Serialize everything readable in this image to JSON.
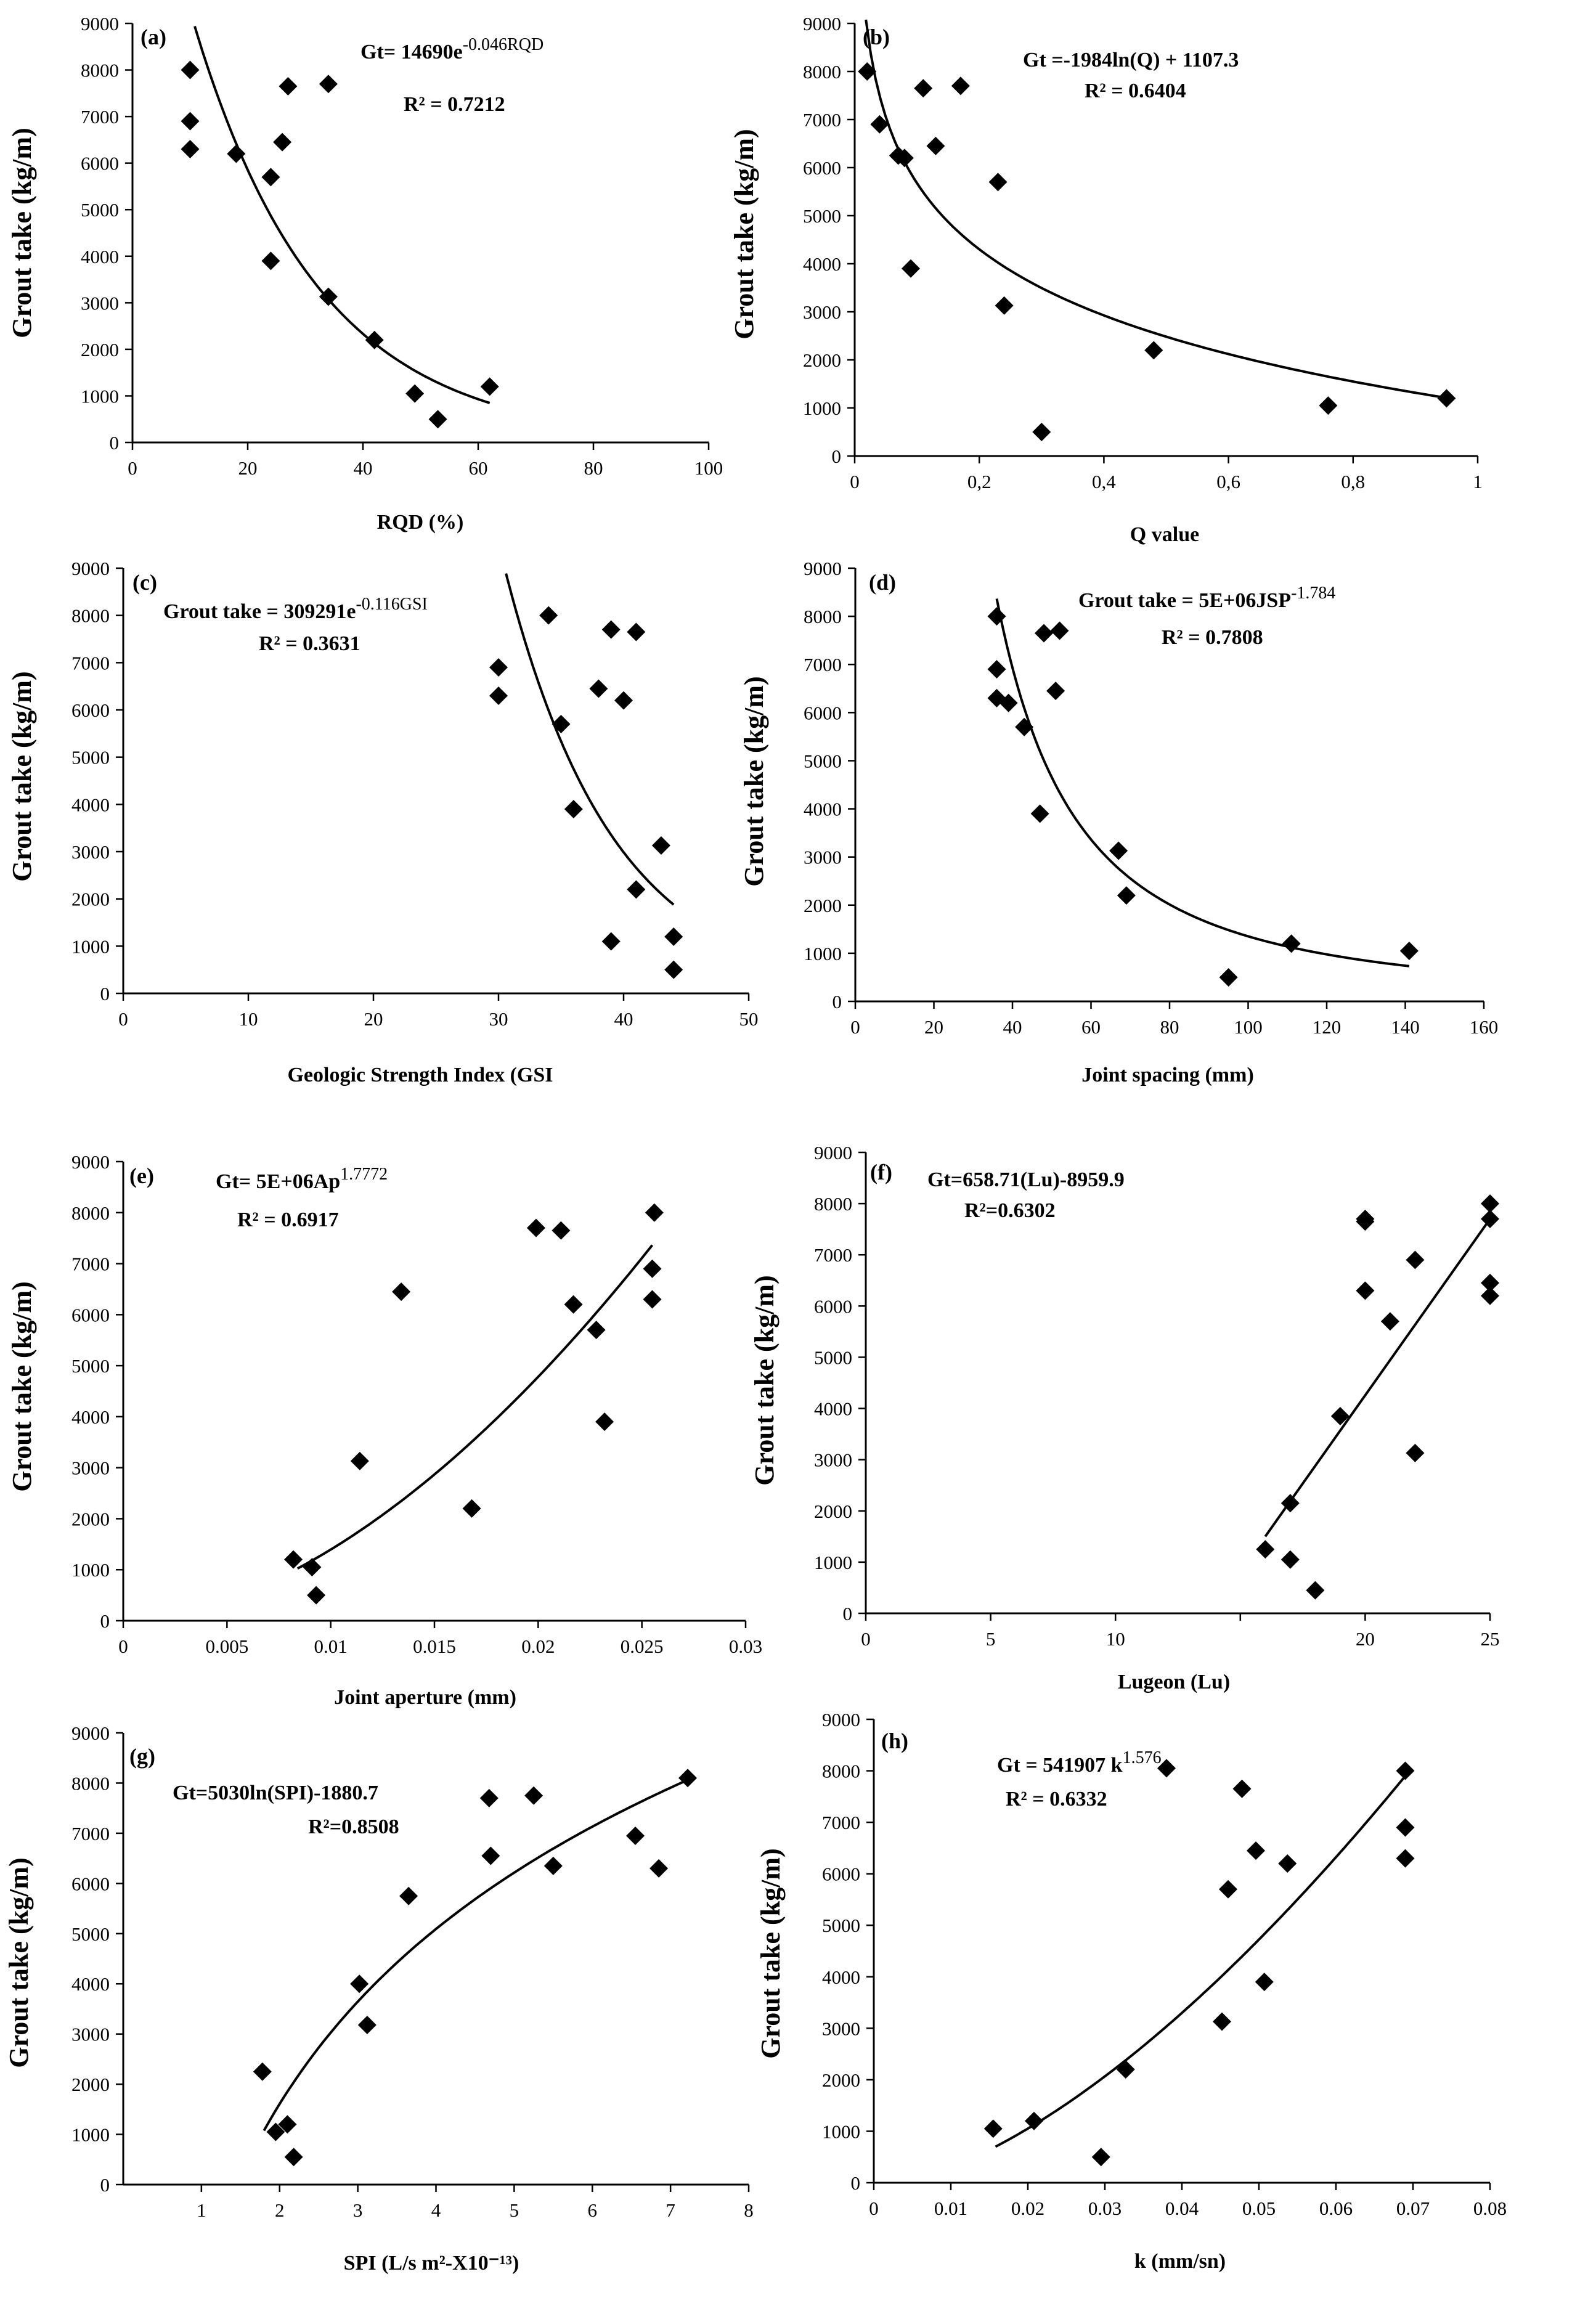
{
  "figure": "Grout take correlation plots",
  "chart_data": [
    {
      "type": "scatter",
      "panel_label": "(a)",
      "ylabel": "Grout take (kg/m)",
      "xlabel": "RQD (%)",
      "equation_parts": [
        "Gt= 14690e",
        "-0.046RQD"
      ],
      "r2": "R² = 0.7212",
      "xlim": [
        0,
        100
      ],
      "ylim": [
        0,
        9000
      ],
      "xticks": [
        0,
        20,
        40,
        60,
        80,
        100
      ],
      "xtick_labels": [
        "0",
        "20",
        "40",
        "60",
        "80",
        "100"
      ],
      "yticks": [
        0,
        1000,
        2000,
        3000,
        4000,
        5000,
        6000,
        7000,
        8000,
        9000
      ],
      "ytick_labels": [
        "0",
        "1000",
        "2000",
        "3000",
        "4000",
        "5000",
        "6000",
        "7000",
        "8000",
        "9000"
      ],
      "points": [
        [
          10,
          8000
        ],
        [
          10,
          6900
        ],
        [
          10,
          6300
        ],
        [
          18,
          6200
        ],
        [
          24,
          5700
        ],
        [
          26,
          6450
        ],
        [
          27,
          7650
        ],
        [
          34,
          7700
        ],
        [
          24,
          3900
        ],
        [
          34,
          3130
        ],
        [
          42,
          2200
        ],
        [
          49,
          1050
        ],
        [
          53,
          500
        ],
        [
          62,
          1200
        ]
      ],
      "fit": {
        "model": "exp",
        "a": 14690,
        "b": -0.046,
        "x_range": [
          10.8,
          62
        ]
      }
    },
    {
      "type": "scatter",
      "panel_label": "(b)",
      "ylabel": "Grout take (kg/m)",
      "xlabel": "Q value",
      "equation_parts": [
        "Gt =-1984ln(Q) + 1107.3"
      ],
      "r2": "R² = 0.6404",
      "xlim": [
        0,
        1
      ],
      "ylim": [
        0,
        9000
      ],
      "xticks": [
        0,
        0.2,
        0.4,
        0.6,
        0.8,
        1
      ],
      "xtick_labels": [
        "0",
        "0,2",
        "0,4",
        "0,6",
        "0,8",
        "1"
      ],
      "yticks": [
        0,
        1000,
        2000,
        3000,
        4000,
        5000,
        6000,
        7000,
        8000,
        9000
      ],
      "ytick_labels": [
        "0",
        "1000",
        "2000",
        "3000",
        "4000",
        "5000",
        "6000",
        "7000",
        "8000",
        "9000"
      ],
      "points": [
        [
          0.02,
          8000
        ],
        [
          0.04,
          6900
        ],
        [
          0.07,
          6250
        ],
        [
          0.08,
          6200
        ],
        [
          0.11,
          7650
        ],
        [
          0.13,
          6450
        ],
        [
          0.17,
          7700
        ],
        [
          0.23,
          5700
        ],
        [
          0.09,
          3900
        ],
        [
          0.24,
          3130
        ],
        [
          0.48,
          2200
        ],
        [
          0.3,
          500
        ],
        [
          0.76,
          1050
        ],
        [
          0.95,
          1200
        ]
      ],
      "fit": {
        "model": "log",
        "a": -1984,
        "b": 1107.3,
        "x_range": [
          0.018,
          0.95
        ]
      }
    },
    {
      "type": "scatter",
      "panel_label": "(c)",
      "ylabel": "Grout take (kg/m)",
      "xlabel": "Geologic Strength Index (GSI",
      "equation_parts": [
        "Grout take = 309291e",
        "-0.116GSI"
      ],
      "r2": "R² = 0.3631",
      "xlim": [
        0,
        50
      ],
      "ylim": [
        0,
        9000
      ],
      "xticks": [
        0,
        10,
        20,
        30,
        40,
        50
      ],
      "xtick_labels": [
        "0",
        "10",
        "20",
        "30",
        "40",
        "50"
      ],
      "yticks": [
        0,
        1000,
        2000,
        3000,
        4000,
        5000,
        6000,
        7000,
        8000,
        9000
      ],
      "ytick_labels": [
        "0",
        "1000",
        "2000",
        "3000",
        "4000",
        "5000",
        "6000",
        "7000",
        "8000",
        "9000"
      ],
      "points": [
        [
          30,
          6900
        ],
        [
          30,
          6300
        ],
        [
          34,
          8000
        ],
        [
          35,
          5700
        ],
        [
          36,
          3900
        ],
        [
          38,
          6450
        ],
        [
          39,
          7700
        ],
        [
          40,
          6200
        ],
        [
          41,
          7650
        ],
        [
          41,
          2200
        ],
        [
          43,
          3130
        ],
        [
          39,
          1100
        ],
        [
          44,
          1200
        ],
        [
          44,
          500
        ]
      ],
      "fit": {
        "model": "exp",
        "a": 309291,
        "b": -0.116,
        "x_range": [
          30.6,
          44
        ]
      }
    },
    {
      "type": "scatter",
      "panel_label": "(d)",
      "ylabel": "Grout take (kg/m)",
      "xlabel": "Joint spacing (mm)",
      "equation_parts": [
        "Grout take = 5E+06JSP",
        "-1.784"
      ],
      "r2": "R² = 0.7808",
      "xlim": [
        0,
        160
      ],
      "ylim": [
        0,
        9000
      ],
      "xticks": [
        0,
        20,
        40,
        60,
        80,
        100,
        120,
        140,
        160
      ],
      "xtick_labels": [
        "0",
        "20",
        "40",
        "60",
        "80",
        "100",
        "120",
        "140",
        "160"
      ],
      "yticks": [
        0,
        1000,
        2000,
        3000,
        4000,
        5000,
        6000,
        7000,
        8000,
        9000
      ],
      "ytick_labels": [
        "0",
        "1000",
        "2000",
        "3000",
        "4000",
        "5000",
        "6000",
        "7000",
        "8000",
        "9000"
      ],
      "points": [
        [
          36,
          8000
        ],
        [
          36,
          6900
        ],
        [
          36,
          6300
        ],
        [
          39,
          6200
        ],
        [
          43,
          5700
        ],
        [
          47,
          3900
        ],
        [
          48,
          7650
        ],
        [
          51,
          6450
        ],
        [
          52,
          7700
        ],
        [
          67,
          3130
        ],
        [
          69,
          2200
        ],
        [
          95,
          500
        ],
        [
          111,
          1200
        ],
        [
          141,
          1050
        ]
      ],
      "fit": {
        "model": "pow",
        "a": 5000000,
        "b": -1.784,
        "x_range": [
          36,
          141
        ]
      }
    },
    {
      "type": "scatter",
      "panel_label": "(e)",
      "ylabel": "Grout take (kg/m)",
      "xlabel": "Joint aperture (mm)",
      "equation_parts": [
        "Gt= 5E+06Ap",
        "1.7772"
      ],
      "r2": "R² = 0.6917",
      "xlim": [
        0,
        0.03
      ],
      "ylim": [
        0,
        9000
      ],
      "xticks": [
        0,
        0.005,
        0.01,
        0.015,
        0.02,
        0.025,
        0.03
      ],
      "xtick_labels": [
        "0",
        "0.005",
        "0.01",
        "0.015",
        "0.02",
        "0.025",
        "0.03"
      ],
      "yticks": [
        0,
        1000,
        2000,
        3000,
        4000,
        5000,
        6000,
        7000,
        8000,
        9000
      ],
      "ytick_labels": [
        "0",
        "1000",
        "2000",
        "3000",
        "4000",
        "5000",
        "6000",
        "7000",
        "8000",
        "9000"
      ],
      "points": [
        [
          0.0082,
          1200
        ],
        [
          0.0091,
          1050
        ],
        [
          0.0093,
          500
        ],
        [
          0.0114,
          3130
        ],
        [
          0.0134,
          6450
        ],
        [
          0.0168,
          2200
        ],
        [
          0.0199,
          7700
        ],
        [
          0.0211,
          7650
        ],
        [
          0.0217,
          6200
        ],
        [
          0.0228,
          5700
        ],
        [
          0.0232,
          3900
        ],
        [
          0.0255,
          6900
        ],
        [
          0.0255,
          6300
        ],
        [
          0.0256,
          8000
        ]
      ],
      "fit": {
        "model": "pow",
        "a": 5000000,
        "b": 1.7772,
        "x_range": [
          0.0084,
          0.0255
        ]
      }
    },
    {
      "type": "scatter",
      "panel_label": "(f)",
      "ylabel": "Grout take (kg/m)",
      "xlabel": "Lugeon (Lu)",
      "equation_parts": [
        "Gt=658.71(Lu)-8959.9"
      ],
      "r2": "R²=0.6302",
      "xlim": [
        0,
        25
      ],
      "ylim": [
        0,
        9000
      ],
      "xticks": [
        0,
        5,
        10,
        15,
        20,
        25
      ],
      "xtick_labels": [
        "0",
        "5",
        "10",
        "20",
        "25"
      ],
      "xtick_label_values": [
        0,
        5,
        10,
        20,
        25
      ],
      "xtick_label_positions": [
        0,
        5,
        10,
        15,
        20,
        25
      ],
      "yticks": [
        0,
        1000,
        2000,
        3000,
        4000,
        5000,
        6000,
        7000,
        8000,
        9000
      ],
      "ytick_labels": [
        "0",
        "1000",
        "2000",
        "3000",
        "4000",
        "5000",
        "6000",
        "7000",
        "8000",
        "9000"
      ],
      "points": [
        [
          16,
          1250
        ],
        [
          17,
          2150
        ],
        [
          17,
          1050
        ],
        [
          18,
          450
        ],
        [
          19,
          3850
        ],
        [
          20,
          6300
        ],
        [
          20,
          7700
        ],
        [
          20,
          7650
        ],
        [
          21,
          5700
        ],
        [
          22,
          6900
        ],
        [
          22,
          3130
        ],
        [
          25,
          8000
        ],
        [
          25,
          7700
        ],
        [
          25,
          6450
        ],
        [
          25,
          6200
        ]
      ],
      "fit": {
        "model": "linear_approx",
        "points": [
          [
            16,
            1500
          ],
          [
            25,
            7700
          ]
        ]
      }
    },
    {
      "type": "scatter",
      "panel_label": "(g)",
      "ylabel": "Grout take (kg/m)",
      "xlabel": "SPI (L/s m²-X10⁻¹³)",
      "equation_parts": [
        "Gt=5030ln(SPI)-1880.7"
      ],
      "r2": "R²=0.8508",
      "xlim": [
        0,
        8
      ],
      "ylim": [
        0,
        9000
      ],
      "xticks": [
        1,
        2,
        3,
        4,
        5,
        6,
        7,
        8
      ],
      "xtick_labels": [
        "1",
        "2",
        "3",
        "4",
        "5",
        "6",
        "7",
        "8"
      ],
      "yticks": [
        0,
        1000,
        2000,
        3000,
        4000,
        5000,
        6000,
        7000,
        8000,
        9000
      ],
      "ytick_labels": [
        "0",
        "1000",
        "2000",
        "3000",
        "4000",
        "5000",
        "6000",
        "7000",
        "8000",
        "9000"
      ],
      "points": [
        [
          1.78,
          2250
        ],
        [
          1.95,
          1050
        ],
        [
          2.1,
          1200
        ],
        [
          2.18,
          550
        ],
        [
          3.02,
          4000
        ],
        [
          3.12,
          3180
        ],
        [
          3.65,
          5750
        ],
        [
          4.68,
          7700
        ],
        [
          4.7,
          6550
        ],
        [
          5.25,
          7750
        ],
        [
          5.5,
          6350
        ],
        [
          6.55,
          6950
        ],
        [
          6.85,
          6300
        ],
        [
          7.22,
          8100
        ]
      ],
      "fit": {
        "model": "log",
        "a": 5030,
        "b": -1880.7,
        "x_range": [
          1.8,
          7.2
        ]
      }
    },
    {
      "type": "scatter",
      "panel_label": "(h)",
      "ylabel": "Grout take (kg/m)",
      "xlabel": "k (mm/sn)",
      "equation_parts": [
        "Gt = 541907 k",
        "1.576"
      ],
      "r2": "R² = 0.6332",
      "xlim": [
        0,
        0.08
      ],
      "ylim": [
        0,
        9000
      ],
      "xticks": [
        0,
        0.01,
        0.02,
        0.03,
        0.04,
        0.05,
        0.06,
        0.07,
        0.08
      ],
      "xtick_labels": [
        "0",
        "0.01",
        "0.02",
        "0.03",
        "0.04",
        "0.05",
        "0.06",
        "0.07",
        "0.08"
      ],
      "yticks": [
        0,
        1000,
        2000,
        3000,
        4000,
        5000,
        6000,
        7000,
        8000,
        9000
      ],
      "ytick_labels": [
        "0",
        "1000",
        "2000",
        "3000",
        "4000",
        "5000",
        "6000",
        "7000",
        "8000",
        "9000"
      ],
      "points": [
        [
          0.0155,
          1050
        ],
        [
          0.0208,
          1200
        ],
        [
          0.0295,
          500
        ],
        [
          0.0327,
          2200
        ],
        [
          0.038,
          8050
        ],
        [
          0.0452,
          3130
        ],
        [
          0.046,
          5700
        ],
        [
          0.0478,
          7650
        ],
        [
          0.0496,
          6450
        ],
        [
          0.0507,
          3900
        ],
        [
          0.0537,
          6200
        ],
        [
          0.069,
          8000
        ],
        [
          0.069,
          6900
        ],
        [
          0.069,
          6300
        ]
      ],
      "fit": {
        "model": "anchored",
        "anchors": [
          [
            0.0158,
            700
          ],
          [
            0.069,
            7900
          ]
        ],
        "exponent": 1.576
      }
    }
  ]
}
